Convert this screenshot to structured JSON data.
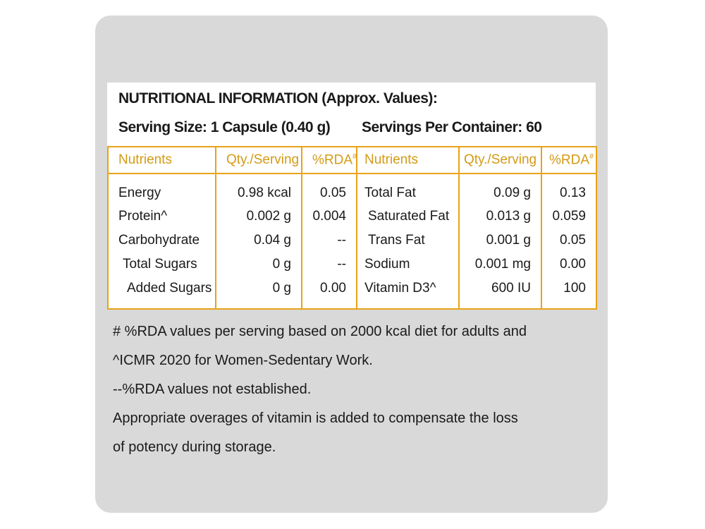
{
  "header": {
    "title": "NUTRITIONAL INFORMATION (Approx. Values):",
    "serving_size": "Serving Size: 1 Capsule (0.40 g)",
    "servings_per_container": "Servings Per Container: 60"
  },
  "table": {
    "columns": [
      "Nutrients",
      "Qty./Serving",
      "%RDA",
      "Nutrients",
      "Qty./Serving",
      "%RDA"
    ],
    "rda_mark": "#",
    "rows": [
      [
        "Energy",
        "0.98 kcal",
        "0.05",
        "Total Fat",
        "0.09 g",
        "0.13"
      ],
      [
        "Protein^",
        "0.002 g",
        "0.004",
        "Saturated Fat",
        "0.013 g",
        "0.059"
      ],
      [
        "Carbohydrate",
        "0.04 g",
        "--",
        "Trans Fat",
        "0.001 g",
        "0.05"
      ],
      [
        "Total Sugars",
        "0 g",
        "--",
        "Sodium",
        "0.001 mg",
        "0.00"
      ],
      [
        "Added Sugars",
        "0 g",
        "0.00",
        "Vitamin D3^",
        "600 IU",
        "100"
      ]
    ]
  },
  "notes": [
    "# %RDA values per serving based on 2000 kcal diet for adults and",
    "^ICMR 2020 for Women-Sedentary Work.",
    "--%RDA values not established.",
    "Appropriate overages of vitamin is added to compensate the loss",
    "of potency during storage."
  ]
}
